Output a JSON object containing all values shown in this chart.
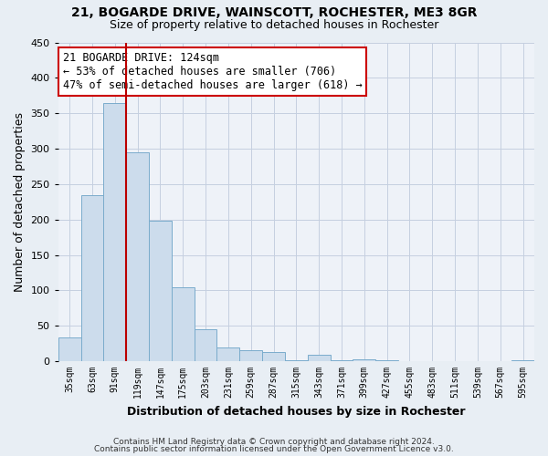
{
  "title": "21, BOGARDE DRIVE, WAINSCOTT, ROCHESTER, ME3 8GR",
  "subtitle": "Size of property relative to detached houses in Rochester",
  "xlabel": "Distribution of detached houses by size in Rochester",
  "ylabel": "Number of detached properties",
  "bar_color": "#ccdcec",
  "bar_edge_color": "#7aaccc",
  "categories": [
    "35sqm",
    "63sqm",
    "91sqm",
    "119sqm",
    "147sqm",
    "175sqm",
    "203sqm",
    "231sqm",
    "259sqm",
    "287sqm",
    "315sqm",
    "343sqm",
    "371sqm",
    "399sqm",
    "427sqm",
    "455sqm",
    "483sqm",
    "511sqm",
    "539sqm",
    "567sqm",
    "595sqm"
  ],
  "values": [
    33,
    235,
    365,
    295,
    198,
    104,
    45,
    20,
    16,
    13,
    2,
    9,
    1,
    3,
    1,
    0,
    0,
    0,
    0,
    0,
    1
  ],
  "ylim": [
    0,
    450
  ],
  "yticks": [
    0,
    50,
    100,
    150,
    200,
    250,
    300,
    350,
    400,
    450
  ],
  "vline_x_index": 3,
  "vline_color": "#bb0000",
  "annotation_title": "21 BOGARDE DRIVE: 124sqm",
  "annotation_line1": "← 53% of detached houses are smaller (706)",
  "annotation_line2": "47% of semi-detached houses are larger (618) →",
  "annotation_box_color": "#ffffff",
  "annotation_box_edge": "#cc0000",
  "footer1": "Contains HM Land Registry data © Crown copyright and database right 2024.",
  "footer2": "Contains public sector information licensed under the Open Government Licence v3.0.",
  "background_color": "#e8eef4",
  "plot_bg_color": "#eef2f8",
  "grid_color": "#c5cfe0"
}
